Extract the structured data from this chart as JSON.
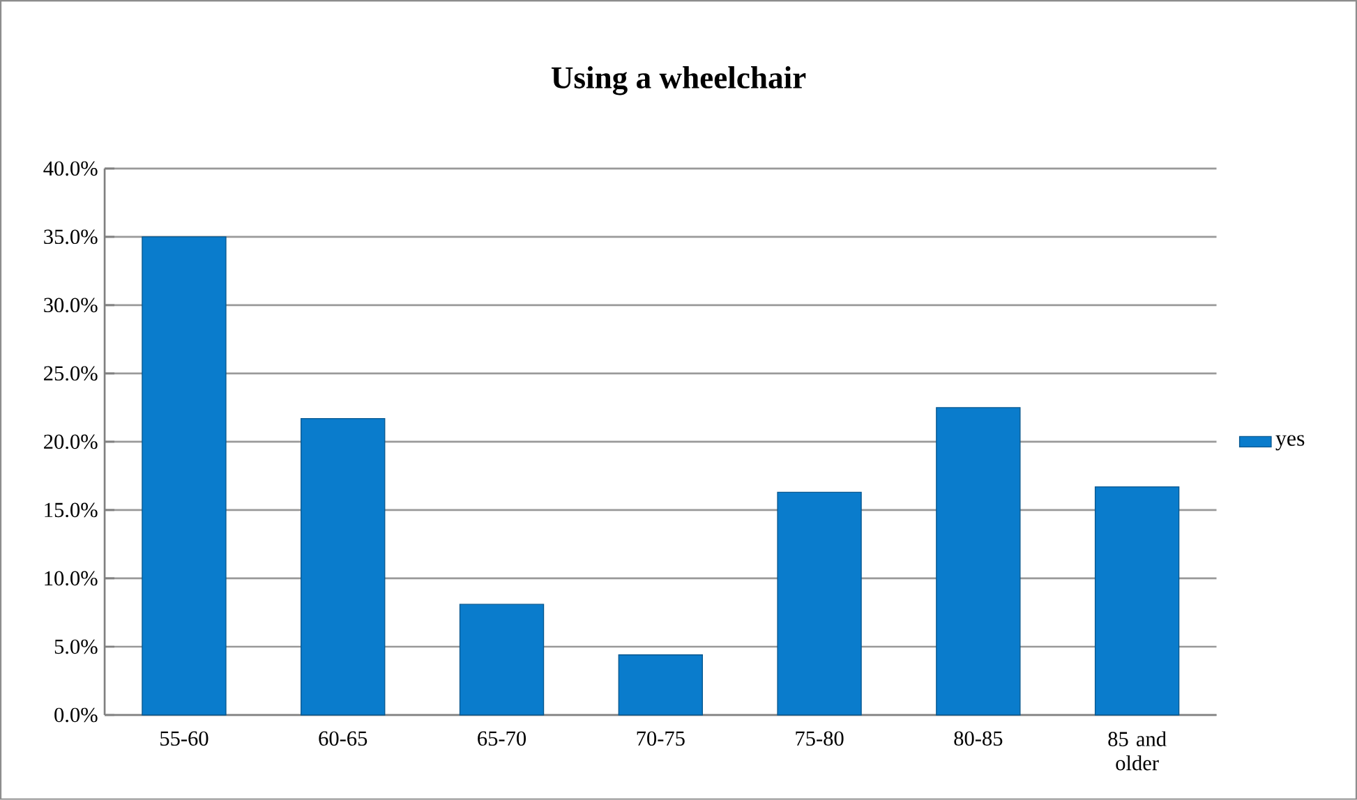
{
  "chart_data": {
    "type": "bar",
    "title": "Using a wheelchair",
    "categories": [
      "55-60",
      "60-65",
      "65-70",
      "70-75",
      "75-80",
      "80-85",
      "85 and older"
    ],
    "series": [
      {
        "name": "yes",
        "color": "#0a7ccc",
        "values": [
          35.0,
          21.7,
          8.1,
          4.4,
          16.3,
          22.5,
          16.7
        ]
      }
    ],
    "ylim": [
      0,
      40
    ],
    "yticks": [
      {
        "value": 0,
        "label": "0.0%"
      },
      {
        "value": 5,
        "label": "5.0%"
      },
      {
        "value": 10,
        "label": "10.0%"
      },
      {
        "value": 15,
        "label": "15.0%"
      },
      {
        "value": 20,
        "label": "20.0%"
      },
      {
        "value": 25,
        "label": "25.0%"
      },
      {
        "value": 30,
        "label": "30.0%"
      },
      {
        "value": 35,
        "label": "35.0%"
      },
      {
        "value": 40,
        "label": "40.0%"
      }
    ],
    "grid": "y",
    "legend": "right"
  }
}
